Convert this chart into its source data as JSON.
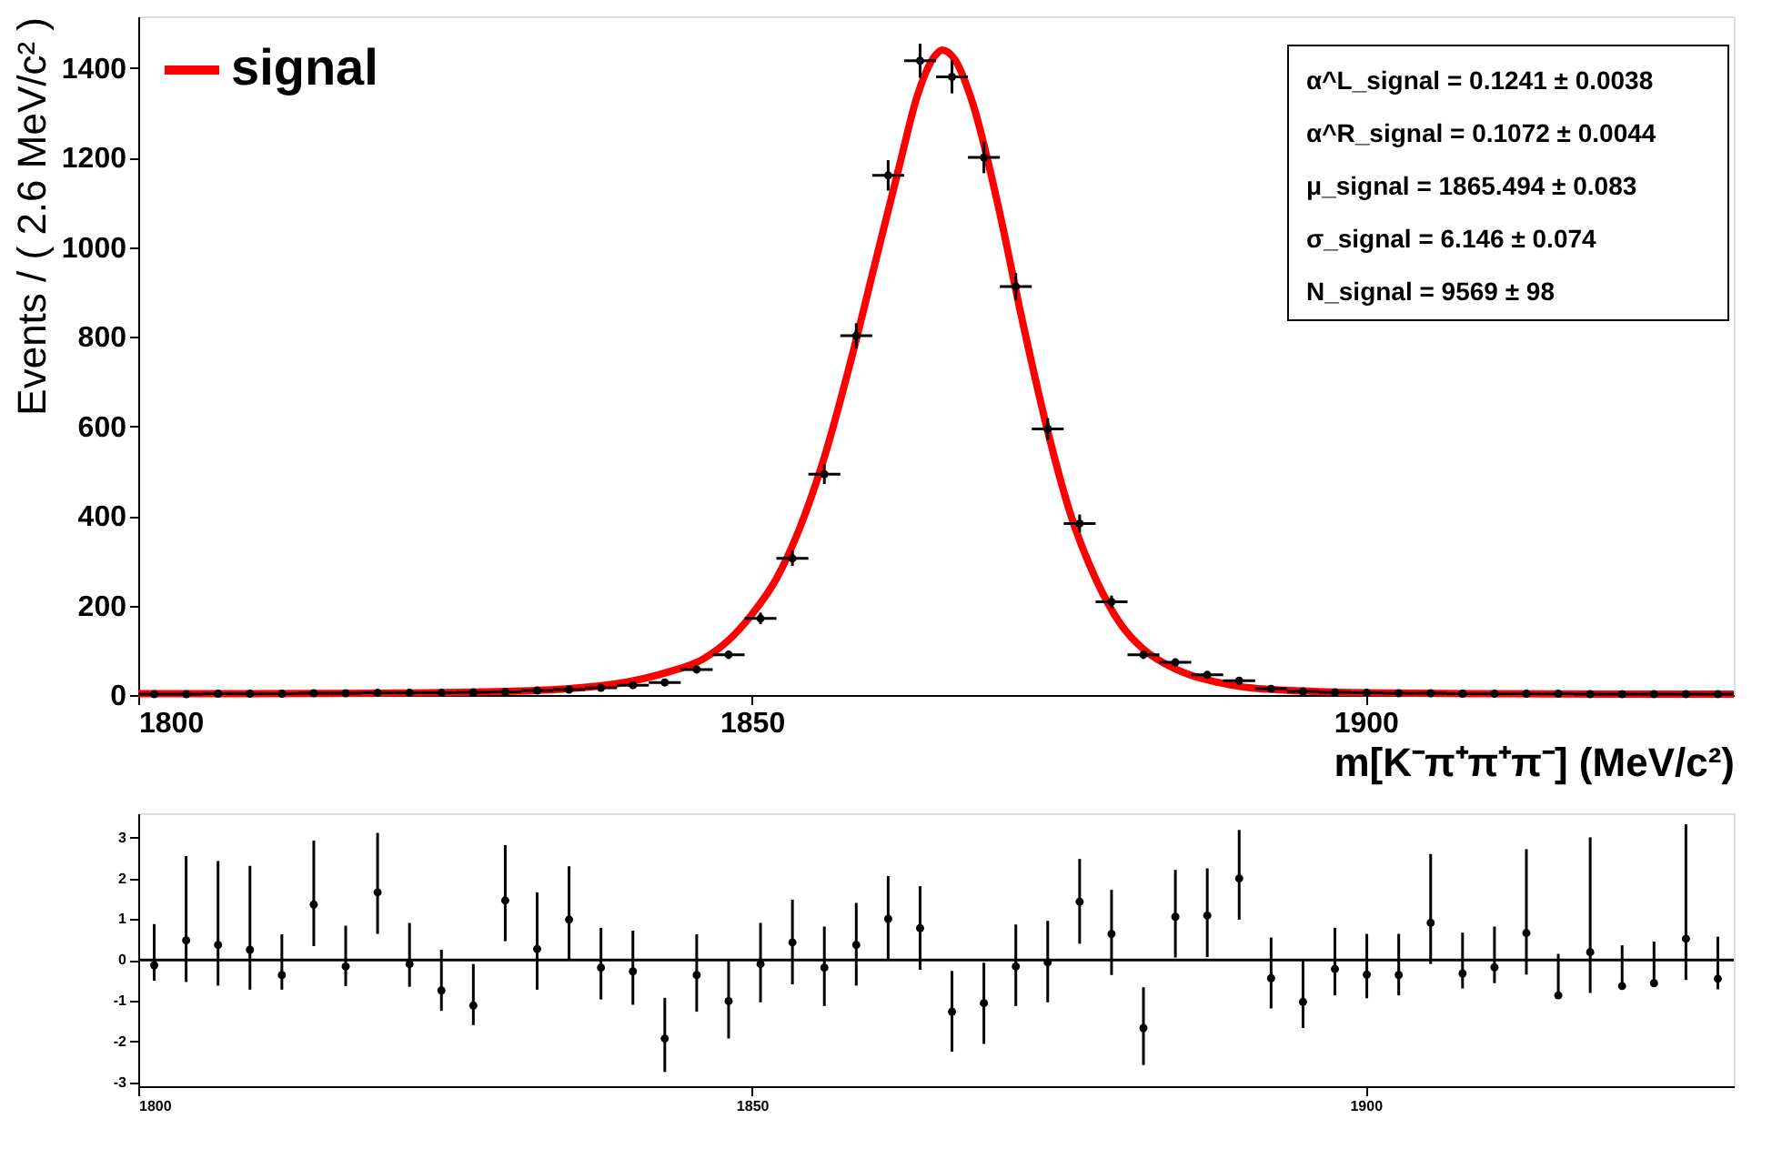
{
  "chart_data": [
    {
      "type": "scatter",
      "xlabel": "m[K⁻π⁺π⁺π⁻] (MeV/c²)",
      "ylabel": "Events / ( 2.6 MeV/c² )",
      "xlim": [
        1800,
        1930
      ],
      "ylim": [
        0,
        1515
      ],
      "xticks": [
        1800,
        1850,
        1900
      ],
      "yticks": [
        0,
        200,
        400,
        600,
        800,
        1000,
        1200,
        1400
      ],
      "grid": false,
      "legend": "top left",
      "marker": "circle",
      "series": [
        {
          "type": "scatter",
          "color": "#000000",
          "x": [
            1801.3,
            1803.9,
            1806.5,
            1809.1,
            1811.7,
            1814.3,
            1816.9,
            1819.5,
            1822.1,
            1824.7,
            1827.3,
            1829.9,
            1832.5,
            1835.1,
            1837.7,
            1840.3,
            1842.9,
            1845.5,
            1848.1,
            1850.7,
            1853.3,
            1855.9,
            1858.5,
            1861.1,
            1863.7,
            1866.3,
            1868.9,
            1871.5,
            1874.1,
            1876.7,
            1879.3,
            1881.9,
            1884.5,
            1887.1,
            1889.7,
            1892.3,
            1894.9,
            1897.5,
            1900.1,
            1902.7,
            1905.3,
            1907.9,
            1910.5,
            1913.1,
            1915.7,
            1918.3,
            1920.9,
            1923.5,
            1926.1,
            1928.7
          ],
          "values": [
            2,
            2,
            3,
            3,
            3,
            4,
            4,
            5,
            5,
            5,
            6,
            7,
            10,
            12,
            16,
            22,
            28,
            57,
            90,
            171,
            305,
            493,
            802,
            1160,
            1416,
            1380,
            1200,
            912,
            594,
            383,
            208,
            90,
            73,
            45,
            32,
            14,
            8,
            6,
            5,
            4,
            4,
            3,
            3,
            3,
            3,
            2,
            2,
            2,
            2,
            2
          ],
          "errors": [
            1.4,
            1.4,
            1.7,
            1.7,
            1.7,
            2,
            2,
            2.2,
            2.2,
            2.2,
            2.4,
            2.6,
            3.2,
            3.5,
            4,
            4.7,
            5.3,
            7.5,
            9.5,
            13,
            17,
            22,
            28,
            34,
            38,
            37,
            35,
            30,
            24,
            20,
            14,
            9.5,
            8.5,
            6.7,
            5.7,
            3.7,
            2.8,
            2.4,
            2.2,
            2,
            2,
            1.7,
            1.7,
            1.7,
            1.7,
            1.4,
            1.4,
            1.4,
            1.4,
            1.4
          ],
          "xerrors": [
            1.3,
            1.3,
            1.3,
            1.3,
            1.3,
            1.3,
            1.3,
            1.3,
            1.3,
            1.3,
            1.3,
            1.3,
            1.3,
            1.3,
            1.3,
            1.3,
            1.3,
            1.3,
            1.3,
            1.3,
            1.3,
            1.3,
            1.3,
            1.3,
            1.3,
            1.3,
            1.3,
            1.3,
            1.3,
            1.3,
            1.3,
            1.3,
            1.3,
            1.3,
            1.3,
            1.3,
            1.3,
            1.3,
            1.3,
            1.3,
            1.3,
            1.3,
            1.3,
            1.3,
            1.3,
            1.3,
            1.3,
            1.3,
            1.3,
            1.3
          ]
        },
        {
          "type": "line",
          "name": "signal",
          "color": "#ff0000",
          "marker": "none",
          "x": [
            1800,
            1810,
            1820,
            1830,
            1835,
            1840,
            1843,
            1846,
            1848,
            1850,
            1852,
            1854,
            1856,
            1858,
            1860,
            1862,
            1863.5,
            1865,
            1865.5,
            1866.5,
            1868,
            1870,
            1872,
            1874,
            1876,
            1878,
            1880,
            1882,
            1884,
            1886,
            1888,
            1890,
            1895,
            1900,
            1910,
            1920,
            1930
          ],
          "values": [
            3,
            3,
            4,
            8,
            14,
            30,
            50,
            80,
            120,
            180,
            260,
            380,
            540,
            740,
            960,
            1180,
            1340,
            1430,
            1440,
            1420,
            1320,
            1100,
            840,
            600,
            400,
            260,
            160,
            100,
            65,
            42,
            28,
            18,
            9,
            5,
            3,
            2,
            2
          ]
        }
      ],
      "annotations": [
        "α^L_signal = 0.1241 ± 0.0038",
        "α^R_signal = 0.1072 ± 0.0044",
        "μ_signal = 1865.494 ± 0.083",
        "σ_signal = 6.146 ± 0.074",
        "N_signal = 9569 ± 98"
      ]
    },
    {
      "type": "scatter",
      "xlim": [
        1800,
        1930
      ],
      "ylim": [
        -3.1,
        3.6
      ],
      "xticks": [
        1800,
        1850,
        1900
      ],
      "yticks": [
        -3,
        -2,
        -1,
        0,
        1,
        2,
        3
      ],
      "grid": false,
      "marker": "circle",
      "ref_lines": [
        {
          "axis": "y",
          "value": 0,
          "color": "#000000"
        }
      ],
      "series": [
        {
          "type": "scatter",
          "color": "#000000",
          "x": [
            1801.3,
            1803.9,
            1806.5,
            1809.1,
            1811.7,
            1814.3,
            1816.9,
            1819.5,
            1822.1,
            1824.7,
            1827.3,
            1829.9,
            1832.5,
            1835.1,
            1837.7,
            1840.3,
            1842.9,
            1845.5,
            1848.1,
            1850.7,
            1853.3,
            1855.9,
            1858.5,
            1861.1,
            1863.7,
            1866.3,
            1868.9,
            1871.5,
            1874.1,
            1876.7,
            1879.3,
            1881.9,
            1884.5,
            1887.1,
            1889.7,
            1892.3,
            1894.9,
            1897.5,
            1900.1,
            1902.7,
            1905.3,
            1907.9,
            1910.5,
            1913.1,
            1915.7,
            1918.3,
            1920.9,
            1923.5,
            1926.1,
            1928.7
          ],
          "values": [
            -0.13,
            0.48,
            0.37,
            0.25,
            -0.37,
            1.36,
            -0.16,
            1.66,
            -0.1,
            -0.75,
            -1.12,
            1.46,
            0.27,
            0.99,
            -0.19,
            -0.28,
            -1.93,
            -0.37,
            -1.01,
            -0.1,
            0.43,
            -0.19,
            0.37,
            1.01,
            0.78,
            -1.27,
            -1.06,
            -0.16,
            -0.06,
            1.43,
            0.64,
            -1.67,
            1.06,
            1.09,
            2.0,
            -0.45,
            -1.03,
            -0.22,
            -0.36,
            -0.37,
            0.91,
            -0.33,
            -0.18,
            0.66,
            -0.87,
            0.19,
            -0.64,
            -0.57,
            0.52,
            -0.46
          ],
          "errors": [
            [
              -0.51,
              0.88
            ],
            [
              -0.54,
              2.55
            ],
            [
              -0.63,
              2.43
            ],
            [
              -0.73,
              2.31
            ],
            [
              -0.73,
              0.63
            ],
            [
              0.34,
              2.93
            ],
            [
              -0.64,
              0.84
            ],
            [
              0.64,
              3.12
            ],
            [
              -0.66,
              0.91
            ],
            [
              -1.25,
              0.25
            ],
            [
              -1.6,
              -0.1
            ],
            [
              0.46,
              2.82
            ],
            [
              -0.73,
              1.66
            ],
            [
              -0.01,
              2.3
            ],
            [
              -0.97,
              0.79
            ],
            [
              -1.1,
              0.72
            ],
            [
              -2.75,
              -0.93
            ],
            [
              -1.27,
              0.63
            ],
            [
              -1.93,
              -0.01
            ],
            [
              -1.04,
              0.91
            ],
            [
              -0.6,
              1.48
            ],
            [
              -1.13,
              0.82
            ],
            [
              -0.63,
              1.4
            ],
            [
              0.0,
              2.06
            ],
            [
              -0.24,
              1.81
            ],
            [
              -2.25,
              -0.27
            ],
            [
              -2.06,
              -0.07
            ],
            [
              -1.13,
              0.87
            ],
            [
              -1.04,
              0.96
            ],
            [
              0.4,
              2.48
            ],
            [
              -0.37,
              1.72
            ],
            [
              -2.58,
              -0.67
            ],
            [
              0.06,
              2.21
            ],
            [
              0.07,
              2.25
            ],
            [
              0.99,
              3.19
            ],
            [
              -1.19,
              0.55
            ],
            [
              -1.67,
              -0.01
            ],
            [
              -0.87,
              0.79
            ],
            [
              -0.94,
              0.64
            ],
            [
              -0.87,
              0.64
            ],
            [
              -0.1,
              2.6
            ],
            [
              -0.7,
              0.67
            ],
            [
              -0.57,
              0.82
            ],
            [
              -0.36,
              2.72
            ],
            [
              -0.87,
              0.15
            ],
            [
              -0.81,
              3.01
            ],
            [
              -0.64,
              0.36
            ],
            [
              -0.57,
              0.45
            ],
            [
              -0.49,
              3.33
            ],
            [
              -0.72,
              0.57
            ]
          ]
        }
      ]
    }
  ]
}
